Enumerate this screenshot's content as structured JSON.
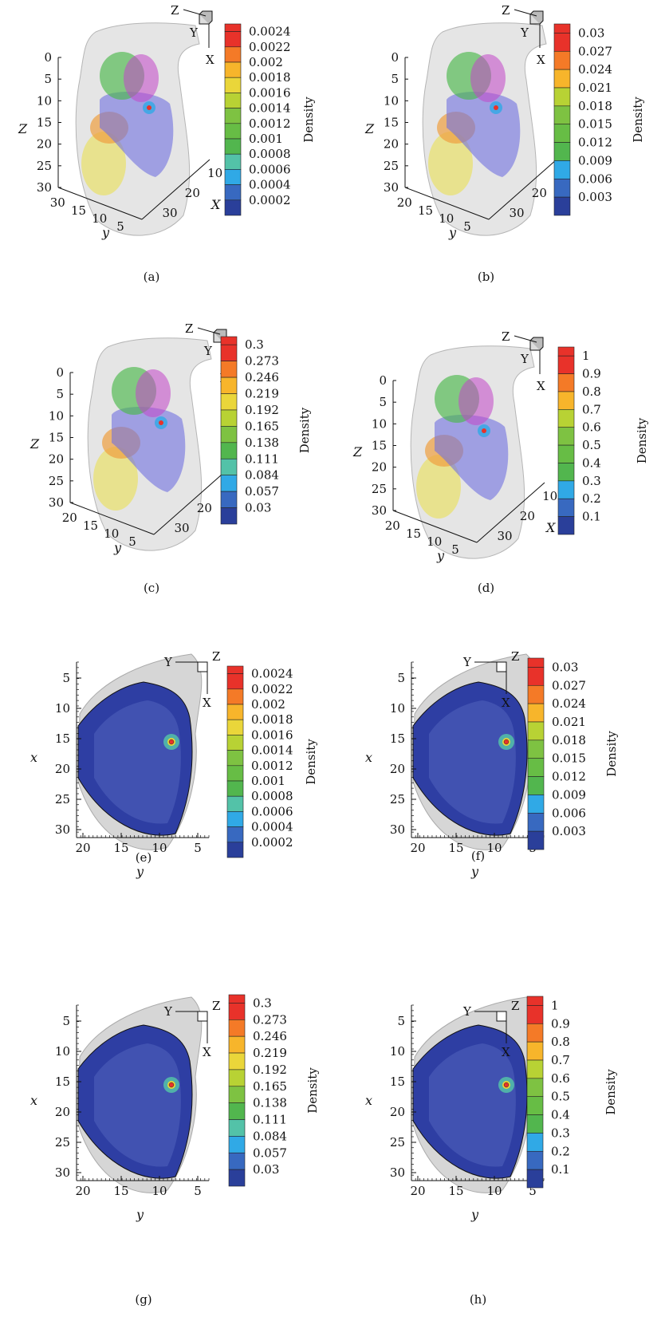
{
  "palette": [
    "#2a3f9a",
    "#3869c0",
    "#30a9e6",
    "#53c2a8",
    "#52b64e",
    "#67bd45",
    "#7ec242",
    "#b8d234",
    "#ead63a",
    "#f7b52b",
    "#f47a27",
    "#e8322a"
  ],
  "organ_colors": {
    "body": "#cfcfcf",
    "green_organ": "#4cb84c",
    "magenta_organ": "#c245c9",
    "blue_organ": "#6f6fe0",
    "orange_organ": "#f0a040",
    "yellow_organ": "#e8e070",
    "slice_dark": "#2e3ea3",
    "slice_light": "#4a5bb6"
  },
  "panels": [
    {
      "id": "a",
      "view": "3d",
      "caption": "(a)",
      "colorbar": {
        "label": "Density",
        "ticks": [
          "0.0024",
          "0.0022",
          "0.002",
          "0.0018",
          "0.0016",
          "0.0014",
          "0.0012",
          "0.001",
          "0.0008",
          "0.0006",
          "0.0004",
          "0.0002"
        ]
      },
      "axes": {
        "z_label": "Z",
        "z_ticks": [
          "0",
          "5",
          "10",
          "15",
          "20",
          "25",
          "30"
        ],
        "y_label": "y",
        "y_ticks": [
          "30",
          "15",
          "10",
          "5"
        ],
        "x_label": "X",
        "x_ticks": [
          "10",
          "20",
          "30"
        ]
      },
      "triad": {
        "z": "Z",
        "y": "Y",
        "x": "X"
      }
    },
    {
      "id": "b",
      "view": "3d",
      "caption": "(b)",
      "colorbar": {
        "label": "Density",
        "ticks": [
          "0.03",
          "0.027",
          "0.024",
          "0.021",
          "0.018",
          "0.015",
          "0.012",
          "0.009",
          "0.006",
          "0.003"
        ]
      },
      "axes": {
        "z_label": "Z",
        "z_ticks": [
          "0",
          "5",
          "10",
          "15",
          "20",
          "25",
          "30"
        ],
        "y_label": "y",
        "y_ticks": [
          "20",
          "15",
          "10",
          "5"
        ],
        "x_label": "X",
        "x_ticks": [
          "10",
          "20",
          "30"
        ]
      },
      "triad": {
        "z": "Z",
        "y": "Y",
        "x": "X"
      }
    },
    {
      "id": "c",
      "view": "3d",
      "caption": "(c)",
      "colorbar": {
        "label": "Density",
        "ticks": [
          "0.3",
          "0.273",
          "0.246",
          "0.219",
          "0.192",
          "0.165",
          "0.138",
          "0.111",
          "0.084",
          "0.057",
          "0.03"
        ]
      },
      "axes": {
        "z_label": "Z",
        "z_ticks": [
          "0",
          "5",
          "10",
          "15",
          "20",
          "25",
          "30"
        ],
        "y_label": "y",
        "y_ticks": [
          "20",
          "15",
          "10",
          "5"
        ],
        "x_label": "X",
        "x_ticks": [
          "10",
          "20",
          "30"
        ]
      },
      "triad": {
        "z": "Z",
        "y": "Y",
        "x": "X"
      }
    },
    {
      "id": "d",
      "view": "3d",
      "caption": "(d)",
      "colorbar": {
        "label": "Density",
        "ticks": [
          "1",
          "0.9",
          "0.8",
          "0.7",
          "0.6",
          "0.5",
          "0.4",
          "0.3",
          "0.2",
          "0.1"
        ]
      },
      "axes": {
        "z_label": "Z",
        "z_ticks": [
          "0",
          "5",
          "10",
          "15",
          "20",
          "25",
          "30"
        ],
        "y_label": "y",
        "y_ticks": [
          "20",
          "15",
          "10",
          "5"
        ],
        "x_label": "X",
        "x_ticks": [
          "10",
          "20",
          "30"
        ]
      },
      "triad": {
        "z": "Z",
        "y": "Y",
        "x": "X"
      }
    },
    {
      "id": "e",
      "view": "slice",
      "caption": "(e)",
      "colorbar": {
        "label": "Density",
        "ticks": [
          "0.0024",
          "0.0022",
          "0.002",
          "0.0018",
          "0.0016",
          "0.0014",
          "0.0012",
          "0.001",
          "0.0008",
          "0.0006",
          "0.0004",
          "0.0002"
        ]
      },
      "axes": {
        "x_label": "x",
        "x_ticks": [
          "5",
          "10",
          "15",
          "20",
          "25",
          "30"
        ],
        "y_label": "y",
        "y_ticks": [
          "20",
          "15",
          "10",
          "5"
        ]
      },
      "triad": {
        "y": "Y",
        "z": "Z",
        "x": "X"
      }
    },
    {
      "id": "f",
      "view": "slice",
      "caption": "(f)",
      "colorbar": {
        "label": "Density",
        "ticks": [
          "0.03",
          "0.027",
          "0.024",
          "0.021",
          "0.018",
          "0.015",
          "0.012",
          "0.009",
          "0.006",
          "0.003"
        ]
      },
      "axes": {
        "x_label": "x",
        "x_ticks": [
          "5",
          "10",
          "15",
          "20",
          "25",
          "30"
        ],
        "y_label": "y",
        "y_ticks": [
          "20",
          "15",
          "10",
          "5"
        ]
      },
      "triad": {
        "y": "Y",
        "z": "Z",
        "x": "X"
      }
    },
    {
      "id": "g",
      "view": "slice",
      "caption": "(g)",
      "colorbar": {
        "label": "Density",
        "ticks": [
          "0.3",
          "0.273",
          "0.246",
          "0.219",
          "0.192",
          "0.165",
          "0.138",
          "0.111",
          "0.084",
          "0.057",
          "0.03"
        ]
      },
      "axes": {
        "x_label": "x",
        "x_ticks": [
          "5",
          "10",
          "15",
          "20",
          "25",
          "30"
        ],
        "y_label": "y",
        "y_ticks": [
          "20",
          "15",
          "10",
          "5"
        ]
      },
      "triad": {
        "y": "Y",
        "z": "Z",
        "x": "X"
      }
    },
    {
      "id": "h",
      "view": "slice",
      "caption": "(h)",
      "colorbar": {
        "label": "Density",
        "ticks": [
          "1",
          "0.9",
          "0.8",
          "0.7",
          "0.6",
          "0.5",
          "0.4",
          "0.3",
          "0.2",
          "0.1"
        ]
      },
      "axes": {
        "x_label": "x",
        "x_ticks": [
          "5",
          "10",
          "15",
          "20",
          "25",
          "30"
        ],
        "y_label": "y",
        "y_ticks": [
          "20",
          "15",
          "10",
          "5"
        ]
      },
      "triad": {
        "y": "Y",
        "z": "Z",
        "x": "X"
      }
    }
  ]
}
